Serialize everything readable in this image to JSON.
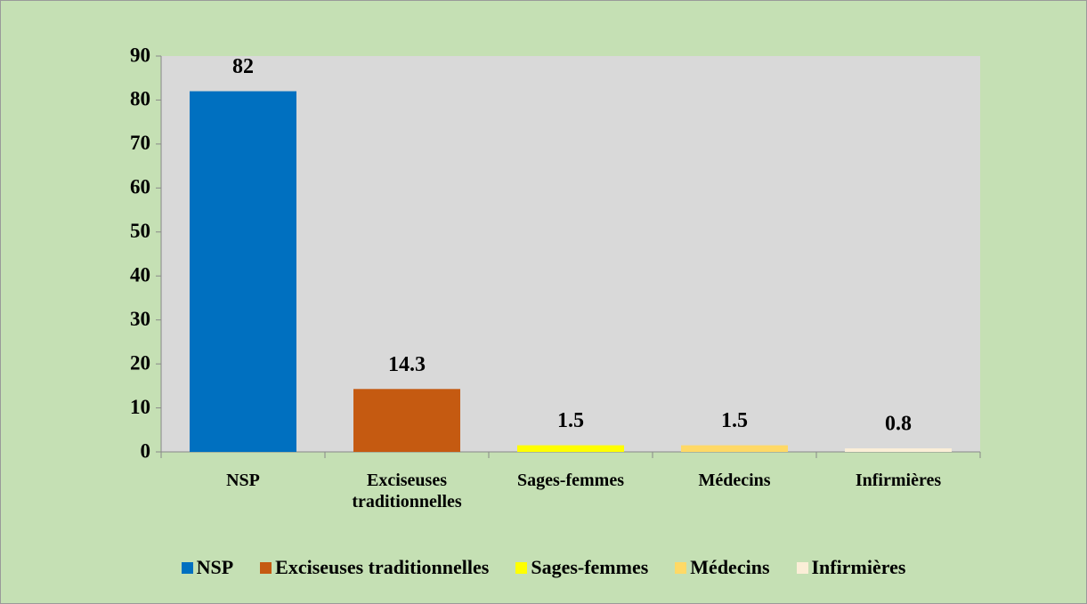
{
  "chart_data": {
    "type": "bar",
    "categories": [
      "NSP",
      "Exciseuses traditionnelles",
      "Sages-femmes",
      "Médecins",
      "Infirmières"
    ],
    "values": [
      82,
      14.3,
      1.5,
      1.5,
      0.8
    ],
    "colors": [
      "#0070c0",
      "#c55a11",
      "#ffff00",
      "#ffd966",
      "#fbeed7"
    ],
    "ylim": [
      0,
      90
    ],
    "yticks": [
      0,
      10,
      20,
      30,
      40,
      50,
      60,
      70,
      80,
      90
    ],
    "legend": "bottom"
  }
}
